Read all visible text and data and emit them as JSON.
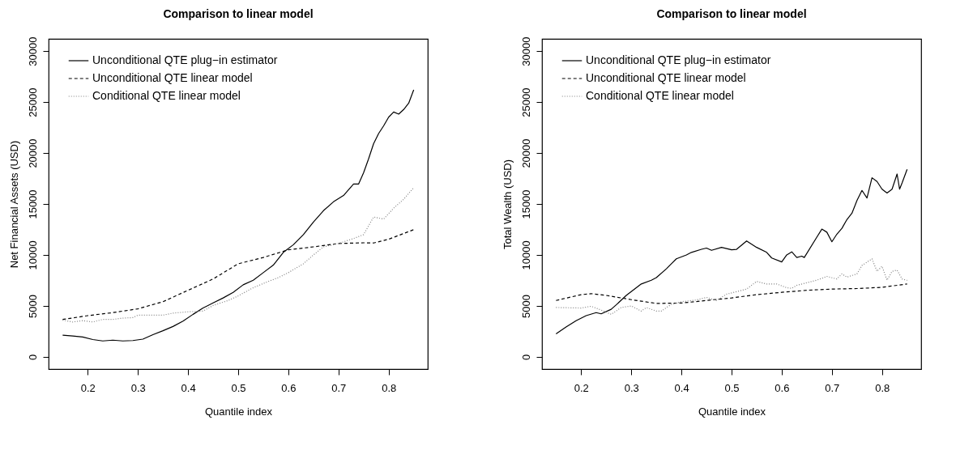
{
  "chart_data": [
    {
      "type": "line",
      "title": "Comparison to linear model",
      "xlabel": "Quantile index",
      "ylabel": "Net Financial Assets (USD)",
      "xlim": [
        0.122,
        0.878
      ],
      "ylim": [
        -1200,
        31200
      ],
      "xticks": [
        0.2,
        0.3,
        0.4,
        0.5,
        0.6,
        0.7,
        0.8
      ],
      "yticks": [
        0,
        5000,
        10000,
        15000,
        20000,
        25000,
        30000
      ],
      "grid": false,
      "legend": "top left",
      "series": [
        {
          "name": "Unconditional QTE plug−in estimator",
          "color": "#000000",
          "line_style": "solid",
          "x": [
            0.15,
            0.17,
            0.19,
            0.21,
            0.23,
            0.25,
            0.27,
            0.29,
            0.31,
            0.33,
            0.35,
            0.37,
            0.39,
            0.41,
            0.43,
            0.45,
            0.47,
            0.49,
            0.51,
            0.53,
            0.55,
            0.57,
            0.59,
            0.61,
            0.63,
            0.65,
            0.67,
            0.69,
            0.71,
            0.73,
            0.74,
            0.75,
            0.76,
            0.77,
            0.78,
            0.79,
            0.8,
            0.81,
            0.82,
            0.83,
            0.84,
            0.85
          ],
          "values": [
            2130,
            2050,
            1950,
            1700,
            1560,
            1640,
            1560,
            1600,
            1740,
            2180,
            2560,
            2980,
            3500,
            4170,
            4790,
            5290,
            5780,
            6330,
            7070,
            7520,
            8260,
            9000,
            10250,
            11000,
            11990,
            13230,
            14340,
            15210,
            15830,
            16950,
            16950,
            18060,
            19430,
            20920,
            21910,
            22660,
            23520,
            24020,
            23820,
            24270,
            24890,
            26200
          ]
        },
        {
          "name": "Unconditional QTE linear model",
          "color": "#000000",
          "line_style": "dashed",
          "x": [
            0.15,
            0.2,
            0.25,
            0.3,
            0.35,
            0.4,
            0.45,
            0.5,
            0.55,
            0.6,
            0.65,
            0.7,
            0.75,
            0.77,
            0.8,
            0.85
          ],
          "values": [
            3670,
            4040,
            4340,
            4710,
            5410,
            6530,
            7640,
            9130,
            9750,
            10500,
            10790,
            11120,
            11190,
            11170,
            11540,
            12480
          ]
        },
        {
          "name": "Conditional QTE linear model",
          "color": "#808080",
          "line_style": "dotted",
          "x": [
            0.15,
            0.17,
            0.19,
            0.21,
            0.23,
            0.25,
            0.27,
            0.29,
            0.3,
            0.35,
            0.37,
            0.4,
            0.43,
            0.45,
            0.48,
            0.5,
            0.53,
            0.56,
            0.58,
            0.6,
            0.63,
            0.65,
            0.67,
            0.7,
            0.73,
            0.75,
            0.77,
            0.79,
            0.81,
            0.83,
            0.85
          ],
          "values": [
            3600,
            3420,
            3550,
            3420,
            3670,
            3670,
            3800,
            3850,
            4090,
            4090,
            4290,
            4420,
            4490,
            5040,
            5530,
            5980,
            6780,
            7400,
            7770,
            8260,
            9130,
            10000,
            10790,
            11120,
            11610,
            11990,
            13720,
            13520,
            14590,
            15460,
            16600
          ]
        }
      ]
    },
    {
      "type": "line",
      "title": "Comparison to linear model",
      "xlabel": "Quantile index",
      "ylabel": "Total Wealth (USD)",
      "xlim": [
        0.122,
        0.878
      ],
      "ylim": [
        -1200,
        31200
      ],
      "xticks": [
        0.2,
        0.3,
        0.4,
        0.5,
        0.6,
        0.7,
        0.8
      ],
      "yticks": [
        0,
        5000,
        10000,
        15000,
        20000,
        25000,
        30000
      ],
      "grid": false,
      "legend": "top left",
      "series": [
        {
          "name": "Unconditional QTE plug−in estimator",
          "color": "#000000",
          "line_style": "solid",
          "x": [
            0.15,
            0.17,
            0.19,
            0.21,
            0.23,
            0.24,
            0.26,
            0.27,
            0.29,
            0.3,
            0.32,
            0.34,
            0.35,
            0.37,
            0.38,
            0.39,
            0.41,
            0.42,
            0.44,
            0.45,
            0.46,
            0.48,
            0.5,
            0.51,
            0.53,
            0.55,
            0.57,
            0.58,
            0.6,
            0.61,
            0.62,
            0.63,
            0.64,
            0.645,
            0.67,
            0.68,
            0.69,
            0.7,
            0.71,
            0.72,
            0.73,
            0.74,
            0.75,
            0.76,
            0.77,
            0.78,
            0.79,
            0.8,
            0.81,
            0.82,
            0.83,
            0.835,
            0.84,
            0.85
          ],
          "values": [
            2260,
            2930,
            3550,
            4040,
            4340,
            4220,
            4670,
            5100,
            6030,
            6400,
            7150,
            7520,
            7770,
            8640,
            9130,
            9620,
            10000,
            10250,
            10550,
            10670,
            10450,
            10740,
            10500,
            10550,
            11370,
            10740,
            10250,
            9700,
            9310,
            10000,
            10300,
            9750,
            9880,
            9750,
            11740,
            12530,
            12230,
            11290,
            12040,
            12610,
            13470,
            14090,
            15330,
            16330,
            15580,
            17570,
            17200,
            16450,
            16080,
            16450,
            17940,
            16450,
            17070,
            18400
          ]
        },
        {
          "name": "Unconditional QTE linear model",
          "color": "#000000",
          "line_style": "dashed",
          "x": [
            0.15,
            0.2,
            0.22,
            0.25,
            0.3,
            0.35,
            0.4,
            0.45,
            0.5,
            0.55,
            0.6,
            0.65,
            0.7,
            0.75,
            0.8,
            0.85
          ],
          "values": [
            5530,
            6100,
            6200,
            6030,
            5610,
            5240,
            5280,
            5530,
            5780,
            6100,
            6330,
            6530,
            6650,
            6700,
            6820,
            7150
          ]
        },
        {
          "name": "Conditional QTE linear model",
          "color": "#808080",
          "line_style": "dotted",
          "x": [
            0.15,
            0.2,
            0.22,
            0.24,
            0.26,
            0.28,
            0.3,
            0.32,
            0.33,
            0.35,
            0.36,
            0.38,
            0.4,
            0.43,
            0.45,
            0.47,
            0.49,
            0.51,
            0.53,
            0.55,
            0.57,
            0.59,
            0.61,
            0.62,
            0.63,
            0.65,
            0.67,
            0.69,
            0.71,
            0.72,
            0.73,
            0.75,
            0.76,
            0.78,
            0.79,
            0.8,
            0.81,
            0.82,
            0.83,
            0.84,
            0.85
          ],
          "values": [
            4840,
            4790,
            4960,
            4590,
            4170,
            4840,
            4990,
            4490,
            4840,
            4490,
            4490,
            5160,
            5410,
            5580,
            5830,
            5530,
            6150,
            6400,
            6650,
            7400,
            7150,
            7150,
            6780,
            6720,
            7020,
            7270,
            7520,
            7890,
            7640,
            8140,
            7820,
            8140,
            8960,
            9620,
            8390,
            8880,
            7520,
            8390,
            8510,
            7640,
            7500
          ]
        }
      ]
    }
  ]
}
